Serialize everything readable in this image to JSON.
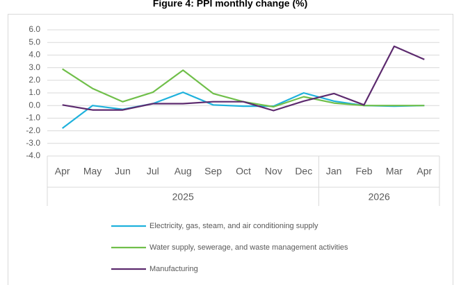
{
  "chart_data": {
    "type": "line",
    "title": "Figure 4: PPI monthly change (%)",
    "categories": [
      "Apr",
      "May",
      "Jun",
      "Jul",
      "Aug",
      "Sep",
      "Oct",
      "Nov",
      "Dec",
      "Jan",
      "Feb",
      "Mar",
      "Apr"
    ],
    "group_labels": [
      "2025",
      "2026"
    ],
    "group_sizes": [
      9,
      4
    ],
    "series": [
      {
        "name": "Electricity, gas, steam, and air conditioning supply",
        "color": "#1eb1dc",
        "values": [
          -1.8,
          0.0,
          -0.3,
          0.15,
          1.05,
          0.05,
          -0.05,
          -0.05,
          1.0,
          0.35,
          0.0,
          -0.05,
          0.0
        ]
      },
      {
        "name": "Water supply, sewerage, and waste management activities",
        "color": "#70bf4a",
        "values": [
          2.9,
          1.35,
          0.3,
          1.05,
          2.8,
          0.95,
          0.3,
          -0.1,
          0.7,
          0.2,
          0.0,
          0.0,
          0.0
        ]
      },
      {
        "name": "Manufacturing",
        "color": "#5c2a6e",
        "values": [
          0.05,
          -0.35,
          -0.35,
          0.15,
          0.15,
          0.3,
          0.3,
          -0.4,
          0.35,
          0.95,
          0.05,
          4.7,
          3.65
        ]
      }
    ],
    "ylim": [
      -4,
      6
    ],
    "yticks": [
      {
        "value": -4,
        "label": "-4.0"
      },
      {
        "value": -3,
        "label": "-3.0"
      },
      {
        "value": -2,
        "label": "-2.0"
      },
      {
        "value": -1,
        "label": "-1.0"
      },
      {
        "value": 0,
        "label": "0.0"
      },
      {
        "value": 1,
        "label": "1.0"
      },
      {
        "value": 2,
        "label": "2.0"
      },
      {
        "value": 3,
        "label": "3.0"
      },
      {
        "value": 4,
        "label": "4.0"
      },
      {
        "value": 5,
        "label": "5.0"
      },
      {
        "value": 6,
        "label": "6.0"
      }
    ],
    "grid": true
  }
}
